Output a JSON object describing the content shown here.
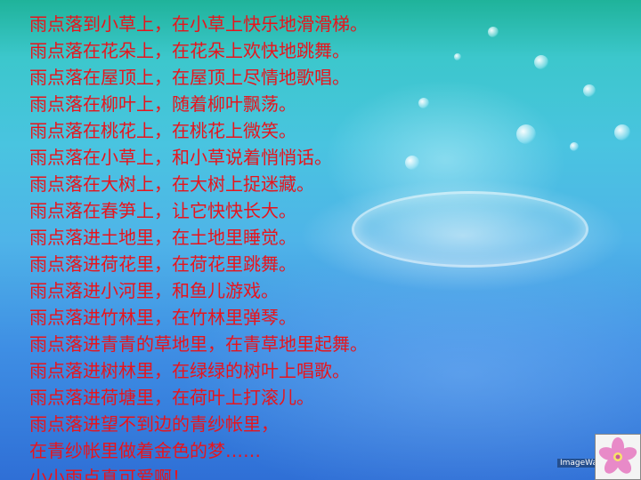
{
  "poem": {
    "lines": [
      "雨点落到小草上，在小草上快乐地滑滑梯。",
      "雨点落在花朵上，在花朵上欢快地跳舞。",
      "雨点落在屋顶上，在屋顶上尽情地歌唱。",
      "雨点落在柳叶上，随着柳叶飘荡。",
      "雨点落在桃花上，在桃花上微笑。",
      "雨点落在小草上，和小草说着悄悄话。",
      "雨点落在大树上，在大树上捉迷藏。",
      "雨点落在春笋上，让它快快长大。",
      "雨点落进土地里，在土地里睡觉。",
      "雨点落进荷花里，在荷花里跳舞。",
      "雨点落进小河里，和鱼儿游戏。",
      "雨点落进竹林里，在竹林里弹琴。",
      "雨点落进青青的草地里，在青草地里起舞。",
      "雨点落进树林里，在绿绿的树叶上唱歌。",
      "雨点落进荷塘里，在荷叶上打滚儿。",
      "雨点落进望不到边的青纱帐里，",
      "在青纱帐里做着金色的梦……",
      "小小雨点真可爱啊！"
    ],
    "color": "#e8141c"
  },
  "watermark": {
    "text": "ImageWa"
  },
  "icons": {
    "corner_image": "pink-flower-icon"
  }
}
